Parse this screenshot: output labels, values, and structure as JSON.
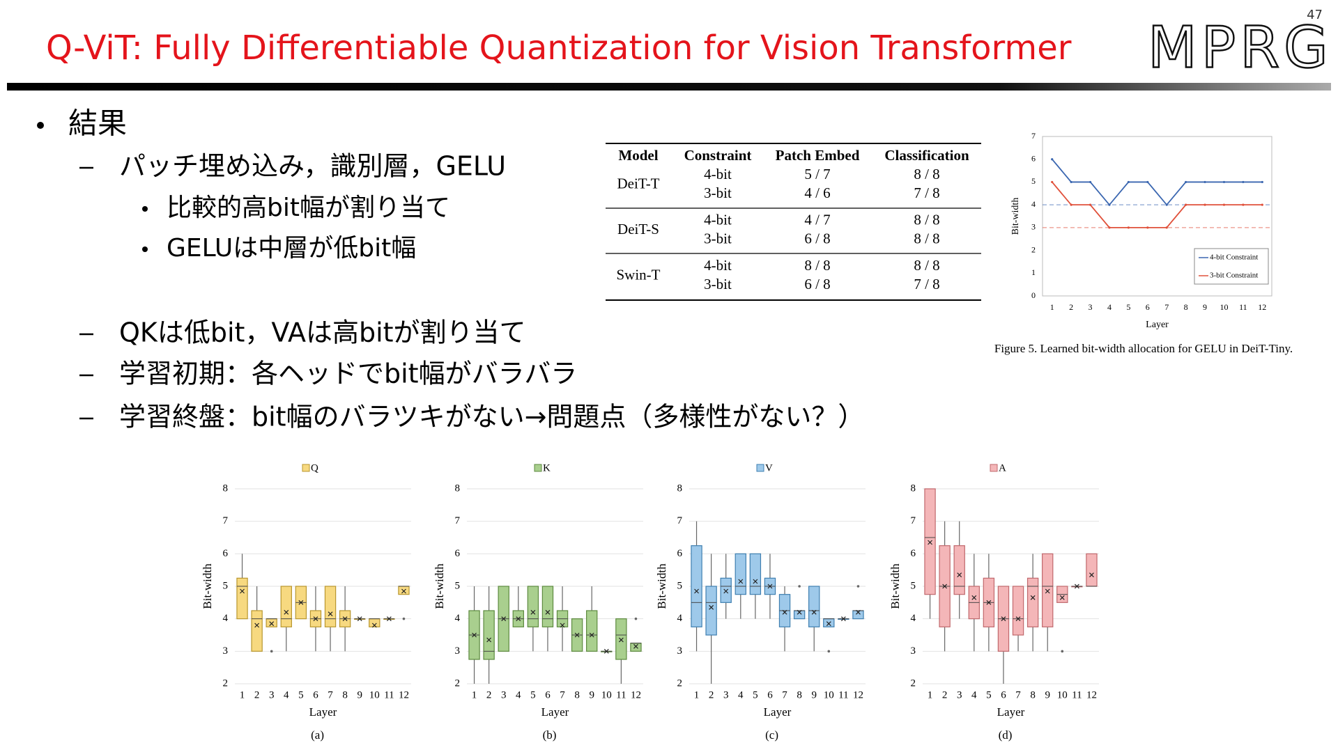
{
  "slide_number": "47",
  "title": "Q-ViT: Fully Differentiable Quantization for Vision Transformer",
  "logo": "MPRG",
  "bullets": [
    {
      "level": 0,
      "text": "結果"
    },
    {
      "level": 1,
      "text": "パッチ埋め込み，識別層，GELU"
    },
    {
      "level": 2,
      "text": "比較的高bit幅が割り当て"
    },
    {
      "level": 2,
      "text": "GELUは中層が低bit幅"
    },
    {
      "level": 1,
      "text": "QKは低bit，VAは高bitが割り当て"
    },
    {
      "level": 1,
      "text": "学習初期：各ヘッドでbit幅がバラバラ"
    },
    {
      "level": 1,
      "text": "学習終盤：bit幅のバラツキがない→問題点（多様性がない？）"
    }
  ],
  "table": {
    "header": [
      "Model",
      "Constraint",
      "Patch Embed",
      "Classification"
    ],
    "groups": [
      {
        "model": "DeiT-T",
        "rows": [
          [
            "4-bit",
            "5 / 7",
            "8 / 8"
          ],
          [
            "3-bit",
            "4 / 6",
            "7 / 8"
          ]
        ]
      },
      {
        "model": "DeiT-S",
        "rows": [
          [
            "4-bit",
            "4 / 7",
            "8 / 8"
          ],
          [
            "3-bit",
            "6 / 8",
            "8 / 8"
          ]
        ]
      },
      {
        "model": "Swin-T",
        "rows": [
          [
            "4-bit",
            "8 / 8",
            "8 / 8"
          ],
          [
            "3-bit",
            "6 / 8",
            "7 / 8"
          ]
        ]
      }
    ]
  },
  "figure_caption": "Figure 5. Learned bit-width allocation for GELU in DeiT-Tiny.",
  "chart_data": [
    {
      "type": "line",
      "xlabel": "Layer",
      "ylabel": "Bit-width",
      "categories": [
        "1",
        "2",
        "3",
        "4",
        "5",
        "6",
        "7",
        "8",
        "9",
        "10",
        "11",
        "12"
      ],
      "ylim": [
        0,
        7
      ],
      "yticks": [
        0,
        1,
        2,
        3,
        4,
        5,
        6,
        7
      ],
      "legend": "lower right",
      "series": [
        {
          "name": "4-bit Constraint",
          "color": "#3a66b0",
          "constraint": 4,
          "values": [
            6,
            5,
            5,
            4,
            5,
            5,
            4,
            5,
            5,
            5,
            5,
            5
          ]
        },
        {
          "name": "3-bit Constraint",
          "color": "#e0503a",
          "constraint": 3,
          "values": [
            5,
            4,
            4,
            3,
            3,
            3,
            3,
            4,
            4,
            4,
            4,
            4
          ]
        }
      ]
    },
    {
      "type": "box",
      "name": "Q",
      "caption": "(a)",
      "xlabel": "Layer",
      "ylabel": "Bit-width",
      "fill": "#f7d980",
      "color": "#b8962e",
      "categories": [
        "1",
        "2",
        "3",
        "4",
        "5",
        "6",
        "7",
        "8",
        "9",
        "10",
        "11",
        "12"
      ],
      "ylim": [
        2,
        8
      ],
      "yticks": [
        2,
        3,
        4,
        5,
        6,
        7,
        8
      ],
      "grid": true,
      "boxes": [
        {
          "min": 4,
          "q1": 4,
          "median": 5,
          "q3": 5.25,
          "max": 6,
          "mean": 4.85
        },
        {
          "min": 3,
          "q1": 3,
          "median": 4,
          "q3": 4.25,
          "max": 5,
          "mean": 3.8
        },
        {
          "min": 3.75,
          "q1": 3.75,
          "median": 4,
          "q3": 4,
          "max": 4,
          "mean": 3.85,
          "outliers": [
            3
          ]
        },
        {
          "min": 3,
          "q1": 3.75,
          "median": 4,
          "q3": 5,
          "max": 5,
          "mean": 4.2
        },
        {
          "min": 4,
          "q1": 4,
          "median": 4.5,
          "q3": 5,
          "max": 5,
          "mean": 4.5
        },
        {
          "min": 3,
          "q1": 3.75,
          "median": 4,
          "q3": 4.25,
          "max": 5,
          "mean": 4
        },
        {
          "min": 3,
          "q1": 3.75,
          "median": 4,
          "q3": 5,
          "max": 5,
          "mean": 4.15
        },
        {
          "min": 3,
          "q1": 3.75,
          "median": 4,
          "q3": 4.25,
          "max": 5,
          "mean": 4
        },
        {
          "min": 4,
          "q1": 4,
          "median": 4,
          "q3": 4,
          "max": 4,
          "mean": 4
        },
        {
          "min": 3.75,
          "q1": 3.75,
          "median": 4,
          "q3": 4,
          "max": 4,
          "mean": 3.8
        },
        {
          "min": 4,
          "q1": 4,
          "median": 4,
          "q3": 4,
          "max": 4,
          "mean": 4
        },
        {
          "min": 4.75,
          "q1": 4.75,
          "median": 5,
          "q3": 5,
          "max": 5,
          "mean": 4.85,
          "outliers": [
            4
          ]
        }
      ]
    },
    {
      "type": "box",
      "name": "K",
      "caption": "(b)",
      "xlabel": "Layer",
      "ylabel": "Bit-width",
      "fill": "#a9cf8e",
      "color": "#5d8a3f",
      "categories": [
        "1",
        "2",
        "3",
        "4",
        "5",
        "6",
        "7",
        "8",
        "9",
        "10",
        "11",
        "12"
      ],
      "ylim": [
        2,
        8
      ],
      "yticks": [
        2,
        3,
        4,
        5,
        6,
        7,
        8
      ],
      "grid": true,
      "boxes": [
        {
          "min": 2,
          "q1": 2.75,
          "median": 3.5,
          "q3": 4.25,
          "max": 5,
          "mean": 3.5
        },
        {
          "min": 2,
          "q1": 2.75,
          "median": 3,
          "q3": 4.25,
          "max": 5,
          "mean": 3.35
        },
        {
          "min": 3,
          "q1": 3,
          "median": 4,
          "q3": 5,
          "max": 5,
          "mean": 4
        },
        {
          "min": 3.75,
          "q1": 3.75,
          "median": 4,
          "q3": 4.25,
          "max": 5,
          "mean": 4
        },
        {
          "min": 3,
          "q1": 3.75,
          "median": 4,
          "q3": 5,
          "max": 5,
          "mean": 4.2
        },
        {
          "min": 3,
          "q1": 3.75,
          "median": 4,
          "q3": 5,
          "max": 5,
          "mean": 4.2
        },
        {
          "min": 3,
          "q1": 3.75,
          "median": 4,
          "q3": 4.25,
          "max": 5,
          "mean": 3.8
        },
        {
          "min": 3,
          "q1": 3,
          "median": 3.5,
          "q3": 4,
          "max": 4,
          "mean": 3.5
        },
        {
          "min": 3,
          "q1": 3,
          "median": 3.5,
          "q3": 4.25,
          "max": 5,
          "mean": 3.5
        },
        {
          "min": 3,
          "q1": 3,
          "median": 3,
          "q3": 3,
          "max": 3,
          "mean": 3
        },
        {
          "min": 2,
          "q1": 2.75,
          "median": 3.5,
          "q3": 4,
          "max": 4,
          "mean": 3.35
        },
        {
          "min": 3,
          "q1": 3,
          "median": 3.25,
          "q3": 3.25,
          "max": 3.25,
          "mean": 3.15,
          "outliers": [
            4
          ]
        }
      ]
    },
    {
      "type": "box",
      "name": "V",
      "caption": "(c)",
      "xlabel": "Layer",
      "ylabel": "Bit-width",
      "fill": "#9ec9ea",
      "color": "#3f7fb0",
      "categories": [
        "1",
        "2",
        "3",
        "4",
        "5",
        "6",
        "7",
        "8",
        "9",
        "10",
        "11",
        "12"
      ],
      "ylim": [
        2,
        8
      ],
      "yticks": [
        2,
        3,
        4,
        5,
        6,
        7,
        8
      ],
      "grid": true,
      "boxes": [
        {
          "min": 3,
          "q1": 3.75,
          "median": 4.5,
          "q3": 6.25,
          "max": 7,
          "mean": 4.85
        },
        {
          "min": 2,
          "q1": 3.5,
          "median": 4.5,
          "q3": 5,
          "max": 6,
          "mean": 4.35
        },
        {
          "min": 4,
          "q1": 4.5,
          "median": 5,
          "q3": 5.25,
          "max": 6,
          "mean": 4.85
        },
        {
          "min": 4,
          "q1": 4.75,
          "median": 5,
          "q3": 6,
          "max": 6,
          "mean": 5.15
        },
        {
          "min": 4,
          "q1": 4.75,
          "median": 5,
          "q3": 6,
          "max": 6,
          "mean": 5.15
        },
        {
          "min": 4,
          "q1": 4.75,
          "median": 5,
          "q3": 5.25,
          "max": 6,
          "mean": 5
        },
        {
          "min": 3,
          "q1": 3.75,
          "median": 4.25,
          "q3": 4.75,
          "max": 5,
          "mean": 4.2
        },
        {
          "min": 4,
          "q1": 4,
          "median": 4.25,
          "q3": 4.25,
          "max": 4.25,
          "mean": 4.2,
          "outliers": [
            5
          ]
        },
        {
          "min": 3,
          "q1": 3.75,
          "median": 4.25,
          "q3": 5,
          "max": 5,
          "mean": 4.2
        },
        {
          "min": 3.75,
          "q1": 3.75,
          "median": 4,
          "q3": 4,
          "max": 4,
          "mean": 3.85,
          "outliers": [
            3
          ]
        },
        {
          "min": 4,
          "q1": 4,
          "median": 4,
          "q3": 4,
          "max": 4,
          "mean": 4
        },
        {
          "min": 4,
          "q1": 4,
          "median": 4.25,
          "q3": 4.25,
          "max": 4.25,
          "mean": 4.2,
          "outliers": [
            5
          ]
        }
      ]
    },
    {
      "type": "box",
      "name": "A",
      "caption": "(d)",
      "xlabel": "Layer",
      "ylabel": "Bit-width",
      "fill": "#f4b6b8",
      "color": "#c0686c",
      "categories": [
        "1",
        "2",
        "3",
        "4",
        "5",
        "6",
        "7",
        "8",
        "9",
        "10",
        "11",
        "12"
      ],
      "ylim": [
        2,
        8
      ],
      "yticks": [
        2,
        3,
        4,
        5,
        6,
        7,
        8
      ],
      "grid": true,
      "boxes": [
        {
          "min": 4,
          "q1": 4.75,
          "median": 6.5,
          "q3": 8,
          "max": 8,
          "mean": 6.35
        },
        {
          "min": 3,
          "q1": 3.75,
          "median": 5,
          "q3": 6.25,
          "max": 7,
          "mean": 5
        },
        {
          "min": 4,
          "q1": 4.75,
          "median": 5,
          "q3": 6.25,
          "max": 7,
          "mean": 5.35
        },
        {
          "min": 3,
          "q1": 4,
          "median": 4.5,
          "q3": 5,
          "max": 6,
          "mean": 4.65
        },
        {
          "min": 3,
          "q1": 3.75,
          "median": 4.5,
          "q3": 5.25,
          "max": 6,
          "mean": 4.5
        },
        {
          "min": 2,
          "q1": 3,
          "median": 4,
          "q3": 5,
          "max": 5,
          "mean": 4
        },
        {
          "min": 3,
          "q1": 3.5,
          "median": 4,
          "q3": 5,
          "max": 5,
          "mean": 4
        },
        {
          "min": 3,
          "q1": 3.75,
          "median": 5,
          "q3": 5.25,
          "max": 6,
          "mean": 4.65
        },
        {
          "min": 3,
          "q1": 3.75,
          "median": 5,
          "q3": 6,
          "max": 6,
          "mean": 4.85
        },
        {
          "min": 4.5,
          "q1": 4.5,
          "median": 4.75,
          "q3": 5,
          "max": 5,
          "mean": 4.65,
          "outliers": [
            3
          ]
        },
        {
          "min": 5,
          "q1": 5,
          "median": 5,
          "q3": 5,
          "max": 5,
          "mean": 5
        },
        {
          "min": 5,
          "q1": 5,
          "median": 5,
          "q3": 6,
          "max": 6,
          "mean": 5.35
        }
      ]
    }
  ]
}
